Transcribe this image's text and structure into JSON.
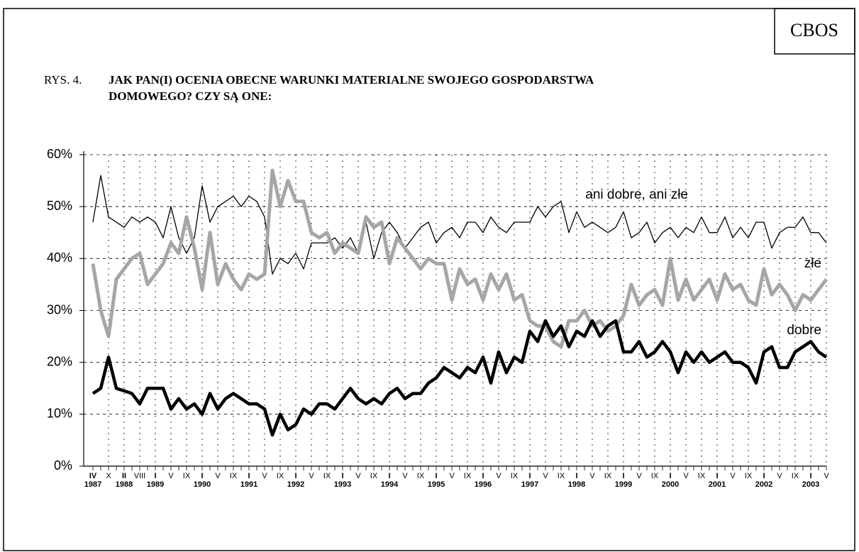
{
  "header": {
    "badge": "CBOS",
    "prefix": "RYS. 4.",
    "title_lines": [
      "JAK PAN(I) OCENIA OBECNE WARUNKI MATERIALNE SWOJEGO GOSPODARSTWA",
      "DOMOWEGO? CZY SĄ ONE:"
    ]
  },
  "chart_data": {
    "type": "line",
    "categories": [
      "IV",
      null,
      "X",
      null,
      "II",
      null,
      "VIII",
      null,
      "I",
      null,
      "V",
      null,
      "IX",
      null,
      "I",
      null,
      "V",
      null,
      "IX",
      null,
      "I",
      null,
      "V",
      null,
      "IX",
      null,
      "I",
      null,
      "V",
      null,
      "IX",
      null,
      "I",
      null,
      "V",
      null,
      "IX",
      null,
      "I",
      null,
      "V",
      null,
      "IX",
      null,
      "I",
      null,
      "V",
      null,
      "IX",
      null,
      "I",
      null,
      "V",
      null,
      "IX",
      null,
      "I",
      null,
      "V",
      null,
      "IX",
      null,
      "I",
      null,
      "V",
      null,
      "IX",
      null,
      "I",
      null,
      "V",
      null,
      "IX",
      null,
      "I",
      null,
      "V",
      null,
      "IX",
      null,
      "I",
      null,
      "V",
      null,
      "IX",
      null,
      "I",
      null,
      "V",
      null,
      "IX",
      null,
      "I",
      null,
      "V"
    ],
    "years": [
      "1987",
      null,
      null,
      null,
      "1988",
      null,
      null,
      null,
      "1989",
      null,
      null,
      null,
      null,
      null,
      "1990",
      null,
      null,
      null,
      null,
      null,
      "1991",
      null,
      null,
      null,
      null,
      null,
      "1992",
      null,
      null,
      null,
      null,
      null,
      "1993",
      null,
      null,
      null,
      null,
      null,
      "1994",
      null,
      null,
      null,
      null,
      null,
      "1995",
      null,
      null,
      null,
      null,
      null,
      "1996",
      null,
      null,
      null,
      null,
      null,
      "1997",
      null,
      null,
      null,
      null,
      null,
      "1998",
      null,
      null,
      null,
      null,
      null,
      "1999",
      null,
      null,
      null,
      null,
      null,
      "2000",
      null,
      null,
      null,
      null,
      null,
      "2001",
      null,
      null,
      null,
      null,
      null,
      "2002",
      null,
      null,
      null,
      null,
      null,
      "2003",
      null,
      null
    ],
    "series": [
      {
        "name": "ani dobre, ani złe",
        "color": "#000000",
        "width": 1.3,
        "values": [
          47,
          56,
          48,
          47,
          46,
          48,
          47,
          48,
          47,
          44,
          50,
          44,
          41,
          44,
          54,
          47,
          50,
          51,
          52,
          50,
          52,
          51,
          48,
          37,
          40,
          39,
          41,
          38,
          43,
          43,
          43,
          44,
          42,
          44,
          41,
          47,
          40,
          45,
          47,
          45,
          42,
          44,
          46,
          47,
          43,
          45,
          46,
          44,
          47,
          47,
          45,
          48,
          46,
          45,
          47,
          47,
          47,
          50,
          48,
          50,
          51,
          45,
          49,
          46,
          47,
          46,
          45,
          46,
          49,
          44,
          45,
          47,
          43,
          45,
          46,
          44,
          46,
          45,
          48,
          45,
          45,
          48,
          44,
          46,
          44,
          47,
          47,
          42,
          45,
          46,
          46,
          48,
          45,
          45,
          43
        ]
      },
      {
        "name": "złe",
        "color": "#a6a6a6",
        "width": 5,
        "values": [
          39,
          30,
          25,
          36,
          38,
          40,
          41,
          35,
          37,
          39,
          43,
          41,
          48,
          42,
          34,
          45,
          35,
          39,
          36,
          34,
          37,
          36,
          37,
          57,
          50,
          55,
          51,
          51,
          45,
          44,
          45,
          41,
          43,
          42,
          41,
          48,
          46,
          47,
          39,
          44,
          42,
          40,
          38,
          40,
          39,
          39,
          32,
          38,
          35,
          36,
          32,
          37,
          34,
          37,
          32,
          33,
          28,
          27,
          27,
          24,
          23,
          28,
          28,
          30,
          27,
          28,
          26,
          27,
          29,
          35,
          31,
          33,
          34,
          31,
          40,
          32,
          36,
          32,
          34,
          36,
          32,
          37,
          34,
          35,
          32,
          31,
          38,
          33,
          35,
          33,
          30,
          33,
          32,
          34,
          36
        ]
      },
      {
        "name": "dobre",
        "color": "#000000",
        "width": 4.5,
        "values": [
          14,
          15,
          21,
          15,
          14.5,
          14,
          12,
          15,
          15,
          15,
          11,
          13,
          11,
          12,
          10,
          14,
          11,
          13,
          14,
          13,
          12,
          12,
          11,
          6,
          10,
          7,
          8,
          11,
          10,
          12,
          12,
          11,
          13,
          15,
          13,
          12,
          13,
          12,
          14,
          15,
          13,
          14,
          14,
          16,
          17,
          19,
          18,
          17,
          19,
          18,
          21,
          16,
          22,
          18,
          21,
          20,
          26,
          24,
          28,
          25,
          27,
          23,
          26,
          25,
          28,
          25,
          27,
          28,
          22,
          22,
          24,
          21,
          22,
          24,
          22,
          18,
          22,
          20,
          22,
          20,
          21,
          22,
          20,
          20,
          19,
          16,
          22,
          23,
          19,
          19,
          22,
          23,
          24,
          22,
          21
        ]
      }
    ],
    "ylim": [
      0,
      60
    ],
    "yticks": [
      {
        "value": 0,
        "label": "0%"
      },
      {
        "value": 10,
        "label": "10%"
      },
      {
        "value": 20,
        "label": "20%"
      },
      {
        "value": 30,
        "label": "30%"
      },
      {
        "value": 40,
        "label": "40%"
      },
      {
        "value": 50,
        "label": "50%"
      },
      {
        "value": 60,
        "label": "60%"
      }
    ],
    "grid": true
  }
}
